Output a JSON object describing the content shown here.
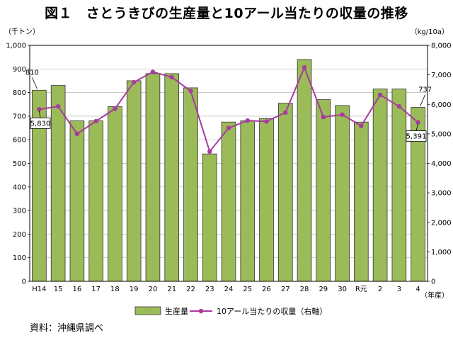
{
  "chart_data": {
    "type": "bar+line",
    "title": "図１　さとうきびの生産量と10アール当たりの収量の推移",
    "left_axis_unit": "（千トン）",
    "right_axis_unit": "（kg/10a）",
    "x_axis_unit": "（年産）",
    "categories": [
      "H14",
      "15",
      "16",
      "17",
      "18",
      "19",
      "20",
      "21",
      "22",
      "23",
      "24",
      "25",
      "26",
      "27",
      "28",
      "29",
      "30",
      "R元",
      "2",
      "3",
      "4"
    ],
    "left_ylim": [
      0,
      1000
    ],
    "left_ticks": [
      "0",
      "100",
      "200",
      "300",
      "400",
      "500",
      "600",
      "700",
      "800",
      "900",
      "1,000"
    ],
    "right_ylim": [
      0,
      8000
    ],
    "right_ticks": [
      "0",
      "1,000",
      "2,000",
      "3,000",
      "4,000",
      "5,000",
      "6,000",
      "7,000",
      "8,000"
    ],
    "grid": true,
    "legend_position": "bottom",
    "series": [
      {
        "name": "生産量",
        "kind": "bar",
        "axis": "left",
        "color": "#9BBB59",
        "values": [
          810,
          830,
          680,
          680,
          740,
          850,
          880,
          880,
          820,
          540,
          675,
          680,
          690,
          755,
          940,
          770,
          745,
          675,
          815,
          815,
          737
        ]
      },
      {
        "name": "10アール当たりの収量（右軸）",
        "kind": "line",
        "axis": "right",
        "color": "#A83B9E",
        "values": [
          5830,
          5930,
          5000,
          5430,
          5850,
          6750,
          7100,
          6920,
          6450,
          4400,
          5200,
          5450,
          5420,
          5720,
          7250,
          5570,
          5650,
          5270,
          6320,
          5930,
          5391
        ]
      }
    ],
    "annotations": [
      {
        "series": "生産量",
        "index": 0,
        "text": "810"
      },
      {
        "series": "生産量",
        "index": 20,
        "text": "737"
      },
      {
        "series": "10アール当たりの収量（右軸）",
        "index": 0,
        "text": "5,830"
      },
      {
        "series": "10アール当たりの収量（右軸）",
        "index": 20,
        "text": "5,391"
      }
    ]
  },
  "source_note": "資料：沖縄県調べ"
}
